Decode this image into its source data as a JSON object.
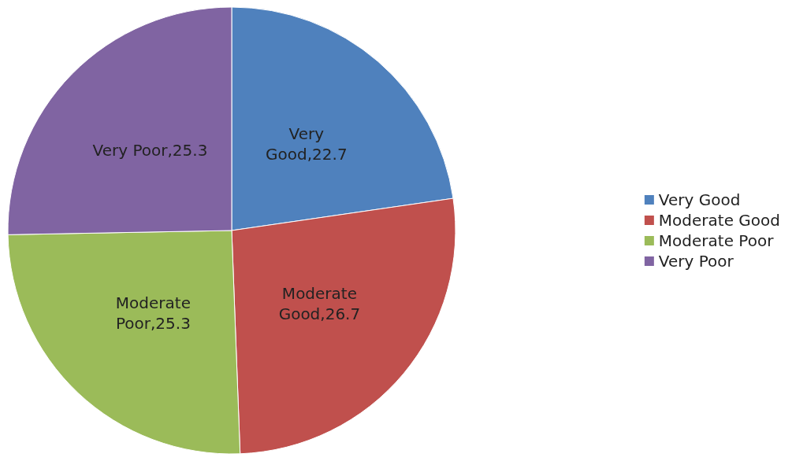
{
  "chart_data": {
    "type": "pie",
    "categories": [
      "Very Good",
      "Moderate Good",
      "Moderate Poor",
      "Very Poor"
    ],
    "values": [
      22.7,
      26.7,
      25.3,
      25.3
    ],
    "colors": [
      "#4f81bd",
      "#c0504d",
      "#9bbb59",
      "#8064a2"
    ],
    "value_labels": [
      "Very\nGood,22.7",
      "Moderate\nGood,26.7",
      "Moderate\nPoor,25.3",
      "Very Poor,25.3"
    ],
    "legend": "right"
  }
}
